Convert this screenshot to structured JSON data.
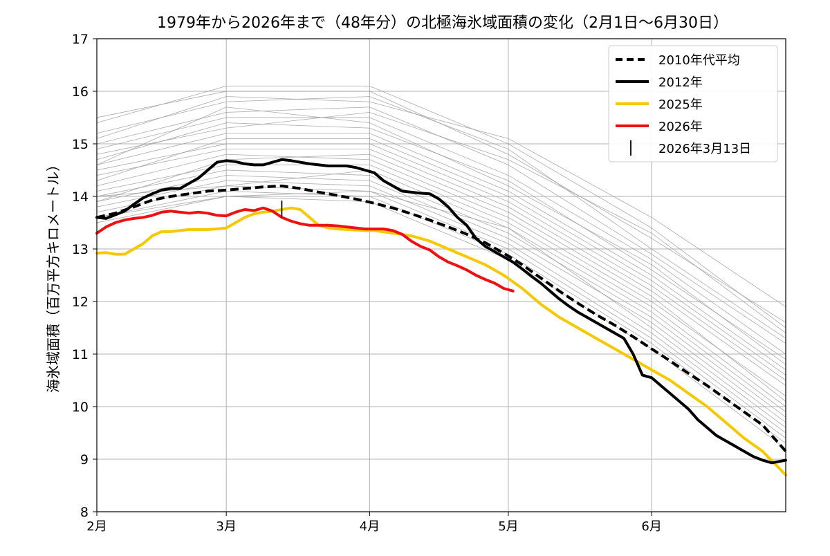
{
  "chart_data": {
    "type": "line",
    "title": "1979年から2026年まで（48年分）の北極海氷域面積の変化（2月1日〜6月30日）",
    "xlabel": "",
    "ylabel": "海氷域面積（百万平方キロメートル）",
    "x_domain": [
      32,
      181
    ],
    "ylim": [
      8,
      17
    ],
    "y_ticks": [
      8,
      9,
      10,
      11,
      12,
      13,
      14,
      15,
      16,
      17
    ],
    "x_ticks": [
      {
        "day": 32,
        "label": "2月"
      },
      {
        "day": 60,
        "label": "3月"
      },
      {
        "day": 91,
        "label": "4月"
      },
      {
        "day": 121,
        "label": "5月"
      },
      {
        "day": 152,
        "label": "6月"
      }
    ],
    "grid": true,
    "legend_position": "top-right",
    "legend": [
      {
        "key": "avg2010s",
        "label": "2010年代平均"
      },
      {
        "key": "y2012",
        "label": "2012年"
      },
      {
        "key": "y2025",
        "label": "2025年"
      },
      {
        "key": "y2026",
        "label": "2026年"
      },
      {
        "key": "marker",
        "label": "2026年3月13日"
      }
    ],
    "colors": {
      "background_years": "#9a9a9a",
      "avg2010s": "#000000",
      "y2012": "#000000",
      "y2025": "#f5c800",
      "y2026": "#ee1111",
      "marker": "#000000",
      "grid": "#b0b0b0"
    },
    "background_years_note": "1979–2024 (gray thin lines)",
    "background_series": [
      {
        "name": "bg1",
        "x": [
          32,
          60,
          91,
          121,
          152,
          181
        ],
        "y": [
          15.5,
          16.0,
          16.0,
          14.8,
          13.2,
          11.6
        ]
      },
      {
        "name": "bg2",
        "x": [
          32,
          60,
          91,
          121,
          152,
          181
        ],
        "y": [
          15.4,
          16.1,
          16.1,
          15.0,
          13.4,
          11.5
        ]
      },
      {
        "name": "bg3",
        "x": [
          32,
          60,
          91,
          121,
          152,
          181
        ],
        "y": [
          15.2,
          15.8,
          15.9,
          14.9,
          13.0,
          11.3
        ]
      },
      {
        "name": "bg4",
        "x": [
          32,
          60,
          91,
          121,
          152,
          181
        ],
        "y": [
          15.0,
          15.6,
          15.7,
          14.6,
          12.9,
          11.2
        ]
      },
      {
        "name": "bg5",
        "x": [
          32,
          60,
          91,
          121,
          152,
          181
        ],
        "y": [
          14.9,
          15.5,
          15.5,
          14.4,
          12.8,
          11.0
        ]
      },
      {
        "name": "bg6",
        "x": [
          32,
          60,
          91,
          121,
          152,
          181
        ],
        "y": [
          14.7,
          15.4,
          15.3,
          14.3,
          12.6,
          10.9
        ]
      },
      {
        "name": "bg7",
        "x": [
          32,
          60,
          91,
          121,
          152,
          181
        ],
        "y": [
          14.6,
          15.2,
          15.2,
          14.1,
          12.5,
          10.7
        ]
      },
      {
        "name": "bg8",
        "x": [
          32,
          60,
          91,
          121,
          152,
          181
        ],
        "y": [
          14.5,
          15.0,
          15.0,
          13.9,
          12.3,
          10.5
        ]
      },
      {
        "name": "bg9",
        "x": [
          32,
          60,
          91,
          121,
          152,
          181
        ],
        "y": [
          14.4,
          14.9,
          14.9,
          13.8,
          12.2,
          10.4
        ]
      },
      {
        "name": "bg10",
        "x": [
          32,
          60,
          91,
          121,
          152,
          181
        ],
        "y": [
          14.2,
          14.8,
          14.7,
          13.6,
          12.0,
          10.2
        ]
      },
      {
        "name": "bg11",
        "x": [
          32,
          60,
          91,
          121,
          152,
          181
        ],
        "y": [
          14.1,
          14.6,
          14.6,
          13.5,
          11.9,
          10.0
        ]
      },
      {
        "name": "bg12",
        "x": [
          32,
          60,
          91,
          121,
          152,
          181
        ],
        "y": [
          14.0,
          14.5,
          14.4,
          13.3,
          11.7,
          9.8
        ]
      },
      {
        "name": "bg13",
        "x": [
          32,
          60,
          91,
          121,
          152,
          181
        ],
        "y": [
          13.9,
          14.4,
          14.3,
          13.2,
          11.6,
          9.7
        ]
      },
      {
        "name": "bg14",
        "x": [
          32,
          60,
          91,
          121,
          152,
          181
        ],
        "y": [
          13.8,
          14.3,
          14.2,
          13.1,
          11.4,
          9.5
        ]
      },
      {
        "name": "bg15",
        "x": [
          32,
          60,
          91,
          121,
          152,
          181
        ],
        "y": [
          13.7,
          14.2,
          14.1,
          13.0,
          11.3,
          9.4
        ]
      },
      {
        "name": "bg16",
        "x": [
          32,
          60,
          91,
          121,
          152,
          181
        ],
        "y": [
          13.6,
          14.1,
          14.0,
          12.9,
          11.2,
          9.3
        ]
      },
      {
        "name": "bg17",
        "x": [
          32,
          60,
          91,
          121,
          152,
          181
        ],
        "y": [
          13.5,
          14.0,
          13.9,
          12.8,
          11.1,
          9.2
        ]
      },
      {
        "name": "bg18",
        "x": [
          32,
          60,
          91,
          121,
          152,
          181
        ],
        "y": [
          15.1,
          15.9,
          15.8,
          15.1,
          13.6,
          11.9
        ]
      },
      {
        "name": "bg19",
        "x": [
          32,
          60,
          91,
          121,
          152,
          181
        ],
        "y": [
          14.8,
          15.3,
          15.6,
          14.7,
          13.3,
          11.4
        ]
      },
      {
        "name": "bg20",
        "x": [
          32,
          60,
          91,
          121,
          152,
          181
        ],
        "y": [
          14.3,
          15.1,
          15.1,
          14.0,
          12.4,
          10.6
        ]
      },
      {
        "name": "bg21",
        "x": [
          32,
          60,
          91,
          121,
          152,
          181
        ],
        "y": [
          13.9,
          14.7,
          14.8,
          13.7,
          12.1,
          10.1
        ]
      },
      {
        "name": "bg22",
        "x": [
          32,
          60,
          91,
          121,
          152,
          181
        ],
        "y": [
          13.6,
          14.0,
          14.1,
          13.4,
          11.8,
          9.9
        ]
      },
      {
        "name": "bg23",
        "x": [
          32,
          60,
          91,
          121,
          152,
          181
        ],
        "y": [
          14.6,
          15.7,
          15.4,
          14.2,
          12.7,
          10.8
        ]
      },
      {
        "name": "bg24",
        "x": [
          32,
          60,
          91,
          121,
          152,
          181
        ],
        "y": [
          14.0,
          14.2,
          14.5,
          13.4,
          11.5,
          9.6
        ]
      }
    ],
    "series": [
      {
        "key": "avg2010s",
        "name": "2010年代平均",
        "style": "dashed",
        "x": [
          32,
          36,
          40,
          44,
          48,
          52,
          56,
          60,
          64,
          68,
          72,
          76,
          80,
          84,
          88,
          92,
          96,
          100,
          104,
          108,
          112,
          116,
          120,
          124,
          128,
          132,
          136,
          140,
          144,
          148,
          152,
          156,
          160,
          164,
          168,
          172,
          176,
          181
        ],
        "y": [
          13.6,
          13.68,
          13.8,
          13.93,
          14.0,
          14.05,
          14.1,
          14.12,
          14.15,
          14.18,
          14.2,
          14.15,
          14.08,
          14.02,
          13.95,
          13.87,
          13.78,
          13.67,
          13.55,
          13.42,
          13.28,
          13.12,
          12.92,
          12.7,
          12.45,
          12.2,
          11.97,
          11.75,
          11.55,
          11.33,
          11.1,
          10.87,
          10.63,
          10.4,
          10.15,
          9.9,
          9.65,
          9.15
        ]
      },
      {
        "key": "y2012",
        "name": "2012年",
        "style": "solid",
        "x": [
          32,
          34,
          36,
          38,
          40,
          42,
          44,
          46,
          48,
          50,
          52,
          54,
          56,
          58,
          60,
          62,
          64,
          66,
          68,
          70,
          72,
          74,
          76,
          78,
          80,
          82,
          84,
          86,
          88,
          90,
          92,
          94,
          96,
          98,
          100,
          102,
          104,
          106,
          108,
          110,
          112,
          114,
          116,
          118,
          120,
          122,
          124,
          126,
          128,
          130,
          132,
          134,
          136,
          138,
          140,
          142,
          144,
          146,
          148,
          150,
          152,
          154,
          156,
          158,
          160,
          162,
          164,
          166,
          168,
          170,
          172,
          174,
          176,
          178,
          181
        ],
        "y": [
          13.6,
          13.58,
          13.65,
          13.72,
          13.85,
          13.97,
          14.05,
          14.12,
          14.15,
          14.15,
          14.25,
          14.35,
          14.5,
          14.65,
          14.68,
          14.66,
          14.62,
          14.6,
          14.6,
          14.65,
          14.7,
          14.68,
          14.65,
          14.62,
          14.6,
          14.58,
          14.58,
          14.58,
          14.55,
          14.5,
          14.45,
          14.3,
          14.2,
          14.1,
          14.08,
          14.06,
          14.05,
          13.95,
          13.8,
          13.6,
          13.45,
          13.2,
          13.05,
          12.95,
          12.85,
          12.75,
          12.62,
          12.48,
          12.35,
          12.2,
          12.05,
          11.92,
          11.8,
          11.7,
          11.6,
          11.5,
          11.4,
          11.3,
          11.0,
          10.6,
          10.55,
          10.4,
          10.25,
          10.1,
          9.95,
          9.75,
          9.6,
          9.45,
          9.35,
          9.25,
          9.15,
          9.05,
          8.98,
          8.93,
          8.98
        ]
      },
      {
        "key": "y2025",
        "name": "2025年",
        "style": "solid",
        "x": [
          32,
          34,
          36,
          38,
          40,
          42,
          44,
          46,
          48,
          50,
          52,
          54,
          56,
          58,
          60,
          62,
          64,
          66,
          68,
          70,
          72,
          74,
          76,
          78,
          80,
          82,
          84,
          86,
          88,
          90,
          92,
          96,
          100,
          104,
          108,
          112,
          116,
          120,
          124,
          128,
          132,
          136,
          140,
          144,
          148,
          152,
          156,
          160,
          164,
          168,
          172,
          176,
          181
        ],
        "y": [
          12.92,
          12.93,
          12.9,
          12.9,
          13.0,
          13.1,
          13.25,
          13.33,
          13.33,
          13.35,
          13.37,
          13.37,
          13.37,
          13.38,
          13.4,
          13.5,
          13.6,
          13.67,
          13.7,
          13.72,
          13.75,
          13.78,
          13.75,
          13.6,
          13.45,
          13.4,
          13.38,
          13.37,
          13.36,
          13.35,
          13.35,
          13.3,
          13.25,
          13.15,
          13.0,
          12.85,
          12.7,
          12.5,
          12.25,
          11.95,
          11.7,
          11.5,
          11.3,
          11.1,
          10.9,
          10.7,
          10.5,
          10.25,
          10.0,
          9.7,
          9.4,
          9.15,
          8.7
        ]
      },
      {
        "key": "y2026",
        "name": "2026年",
        "style": "solid",
        "x": [
          32,
          34,
          36,
          38,
          40,
          42,
          44,
          46,
          48,
          50,
          52,
          54,
          56,
          58,
          60,
          62,
          64,
          66,
          68,
          70,
          72,
          74,
          76,
          78,
          80,
          82,
          84,
          86,
          88,
          90,
          92,
          94,
          96,
          98,
          100,
          102,
          104,
          106,
          108,
          110,
          112,
          114,
          116,
          118,
          120,
          122
        ],
        "y": [
          13.3,
          13.42,
          13.5,
          13.55,
          13.58,
          13.6,
          13.64,
          13.7,
          13.72,
          13.7,
          13.68,
          13.7,
          13.68,
          13.64,
          13.63,
          13.7,
          13.75,
          13.73,
          13.78,
          13.72,
          13.6,
          13.53,
          13.48,
          13.45,
          13.45,
          13.45,
          13.44,
          13.42,
          13.4,
          13.38,
          13.38,
          13.38,
          13.35,
          13.28,
          13.15,
          13.05,
          12.98,
          12.85,
          12.75,
          12.68,
          12.6,
          12.5,
          12.42,
          12.35,
          12.25,
          12.2
        ]
      }
    ],
    "marker": {
      "name": "2026年3月13日",
      "x": 72,
      "y_low": 13.6,
      "y_high": 13.92
    }
  }
}
